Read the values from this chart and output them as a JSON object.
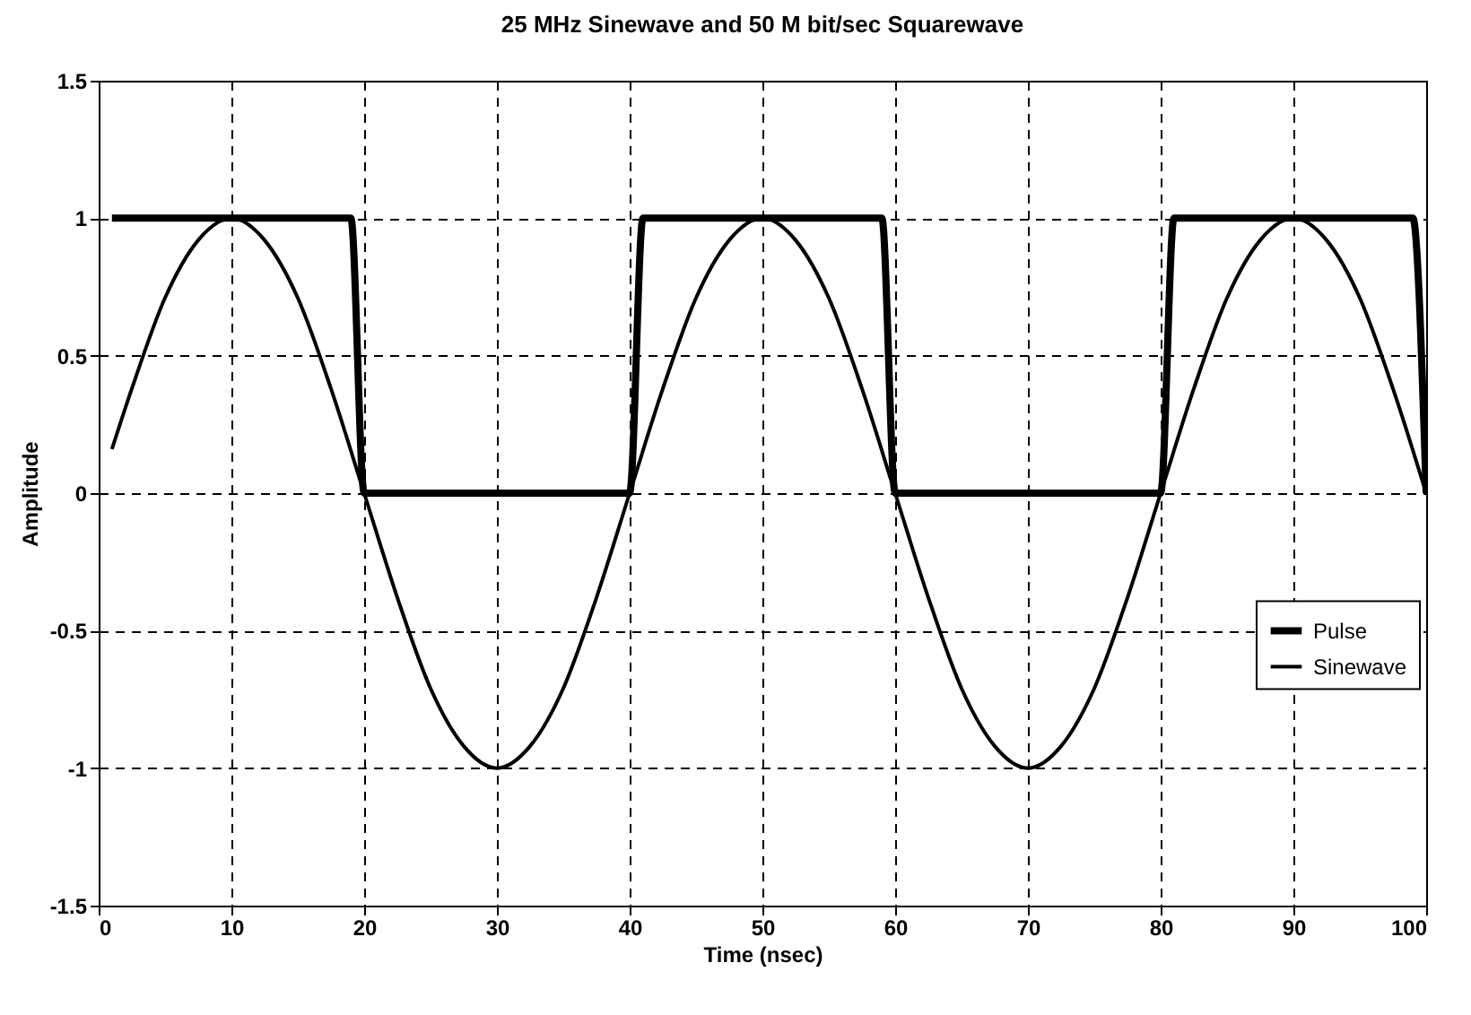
{
  "chart_data": {
    "type": "line",
    "title": "25 MHz Sinewave and 50 M bit/sec Squarewave",
    "xlabel": "Time (nsec)",
    "ylabel": "Amplitude",
    "xlim": [
      0,
      100
    ],
    "xticks": [
      0,
      10,
      20,
      30,
      40,
      50,
      60,
      70,
      80,
      90,
      100
    ],
    "ylim": [
      -1.5,
      1.5
    ],
    "yticks": [
      -1.5,
      -1,
      -0.5,
      0,
      0.5,
      1,
      1.5
    ],
    "grid": true,
    "legend": "right",
    "marker": "none",
    "line_style": "solid",
    "series": [
      {
        "name": "Pulse",
        "color": "#000000",
        "x": [
          1,
          19,
          20,
          40,
          41,
          59,
          60,
          80,
          81,
          99,
          100
        ],
        "values": [
          1,
          1,
          0,
          0,
          1,
          1,
          0,
          0,
          1,
          1,
          0
        ]
      },
      {
        "name": "Sinewave",
        "color": "#000000",
        "x": [
          1,
          2.5,
          5,
          7.5,
          10,
          12.5,
          15,
          17.5,
          20,
          22.5,
          25,
          27.5,
          30,
          32.5,
          35,
          37.5,
          40,
          42.5,
          45,
          47.5,
          50,
          52.5,
          55,
          57.5,
          60,
          62.5,
          65,
          67.5,
          70,
          72.5,
          75,
          77.5,
          80,
          82.5,
          85,
          87.5,
          90,
          92.5,
          95,
          97.5,
          100
        ],
        "values": [
          0.16,
          0.38,
          0.71,
          0.92,
          1,
          0.92,
          0.71,
          0.38,
          0,
          -0.38,
          -0.71,
          -0.92,
          -1,
          -0.92,
          -0.71,
          -0.38,
          0,
          0.38,
          0.71,
          0.92,
          1,
          0.92,
          0.71,
          0.38,
          0,
          -0.38,
          -0.71,
          -0.92,
          -1,
          -0.92,
          -0.71,
          -0.38,
          0,
          0.38,
          0.71,
          0.92,
          1,
          0.92,
          0.71,
          0.38,
          0
        ]
      }
    ]
  }
}
